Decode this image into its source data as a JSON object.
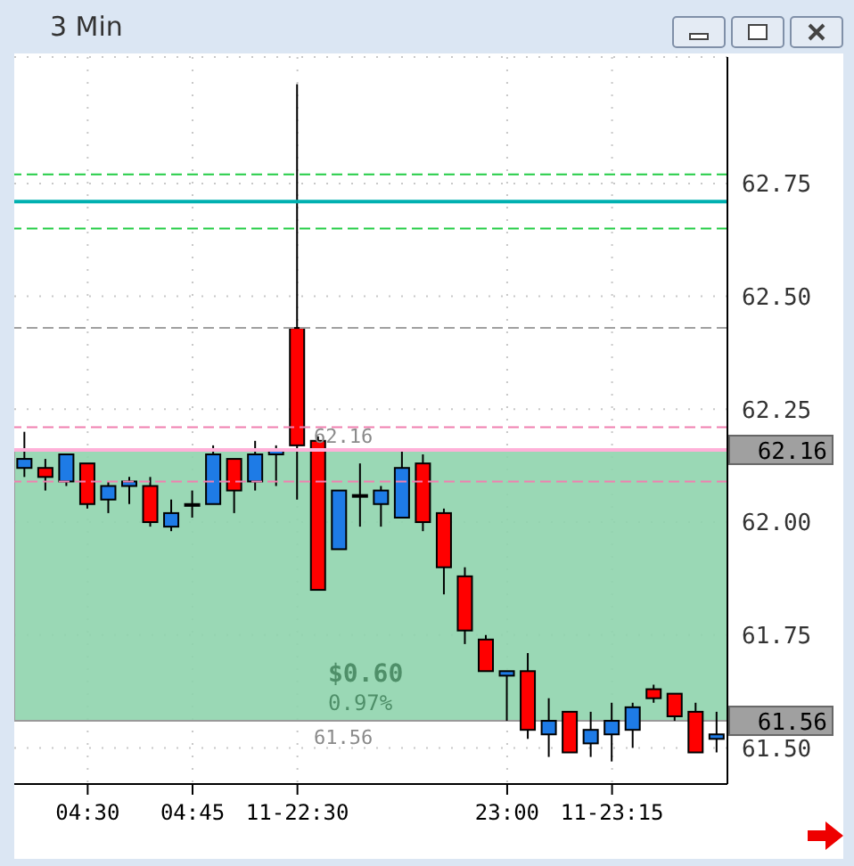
{
  "chart_data": {
    "type": "candlestick",
    "title": "3 Min",
    "categories": [
      null,
      null,
      null,
      "04:30",
      null,
      null,
      null,
      null,
      "04:45",
      null,
      null,
      null,
      null,
      "11-22:30",
      null,
      null,
      null,
      null,
      null,
      null,
      null,
      null,
      null,
      "23:00",
      null,
      null,
      null,
      null,
      "11-23:15",
      null,
      null,
      null,
      null,
      null
    ],
    "ohlc": [
      [
        62.12,
        62.2,
        62.1,
        62.14
      ],
      [
        62.12,
        62.14,
        62.07,
        62.1
      ],
      [
        62.09,
        62.15,
        62.08,
        62.15
      ],
      [
        62.13,
        62.13,
        62.03,
        62.04
      ],
      [
        62.05,
        62.09,
        62.02,
        62.08
      ],
      [
        62.08,
        62.1,
        62.04,
        62.09
      ],
      [
        62.08,
        62.1,
        61.99,
        62.0
      ],
      [
        61.99,
        62.05,
        61.98,
        62.02
      ],
      [
        62.04,
        62.07,
        62.01,
        62.04
      ],
      [
        62.04,
        62.17,
        62.04,
        62.15
      ],
      [
        62.14,
        62.14,
        62.02,
        62.07
      ],
      [
        62.09,
        62.18,
        62.07,
        62.15
      ],
      [
        62.15,
        62.17,
        62.08,
        62.16
      ],
      [
        62.43,
        62.97,
        62.05,
        62.17
      ],
      [
        62.18,
        62.19,
        61.85,
        61.85
      ],
      [
        61.94,
        62.07,
        61.94,
        62.07
      ],
      [
        62.06,
        62.13,
        61.99,
        62.06
      ],
      [
        62.04,
        62.08,
        61.99,
        62.07
      ],
      [
        62.01,
        62.16,
        62.01,
        62.12
      ],
      [
        62.13,
        62.15,
        61.98,
        62.0
      ],
      [
        62.02,
        62.03,
        61.84,
        61.9
      ],
      [
        61.88,
        61.9,
        61.73,
        61.76
      ],
      [
        61.74,
        61.75,
        61.67,
        61.67
      ],
      [
        61.66,
        61.67,
        61.56,
        61.67
      ],
      [
        61.67,
        61.71,
        61.52,
        61.54
      ],
      [
        61.53,
        61.61,
        61.48,
        61.56
      ],
      [
        61.58,
        61.58,
        61.49,
        61.49
      ],
      [
        61.51,
        61.58,
        61.48,
        61.54
      ],
      [
        61.53,
        61.6,
        61.47,
        61.56
      ],
      [
        61.54,
        61.6,
        61.5,
        61.59
      ],
      [
        61.63,
        61.64,
        61.6,
        61.61
      ],
      [
        61.62,
        61.62,
        61.56,
        61.57
      ],
      [
        61.58,
        61.6,
        61.49,
        61.49
      ],
      [
        61.52,
        61.58,
        61.49,
        61.53
      ]
    ],
    "colors": [
      "#1e7be6",
      "#ff0000",
      "#1e7be6",
      "#ff0000",
      "#1e7be6",
      "#1e7be6",
      "#ff0000",
      "#1e7be6",
      "#000000",
      "#1e7be6",
      "#ff0000",
      "#1e7be6",
      "#1e7be6",
      "#ff0000",
      "#ff0000",
      "#1e7be6",
      "#000000",
      "#1e7be6",
      "#1e7be6",
      "#ff0000",
      "#ff0000",
      "#ff0000",
      "#ff0000",
      "#1e7be6",
      "#ff0000",
      "#1e7be6",
      "#ff0000",
      "#1e7be6",
      "#1e7be6",
      "#1e7be6",
      "#ff0000",
      "#ff0000",
      "#ff0000",
      "#1e7be6"
    ],
    "ylim": [
      61.42,
      63.03
    ],
    "yticks": [
      {
        "value": 61.5,
        "label": "61.50"
      },
      61.75,
      {
        "value": 62,
        "label": "62.00"
      },
      62.25,
      {
        "value": 62.5,
        "label": "62.50"
      },
      62.75
    ],
    "grid": true,
    "ref_lines": [
      {
        "axis": "y",
        "value": 62.77,
        "color": "#22cc44",
        "line_style": "dashed"
      },
      {
        "axis": "y",
        "value": 62.71,
        "color": "#00b0b0",
        "line_style": "solid"
      },
      {
        "axis": "y",
        "value": 62.65,
        "color": "#22cc44",
        "line_style": "dashed"
      },
      {
        "axis": "y",
        "value": 62.43,
        "color": "#a0a0a0",
        "line_style": "dashed"
      },
      {
        "axis": "y",
        "value": 62.21,
        "color": "#f080b0",
        "line_style": "dashed"
      },
      {
        "axis": "y",
        "value": 62.16,
        "color": "#ffb0d8",
        "line_style": "solid",
        "label": "62.16"
      },
      {
        "axis": "y",
        "value": 62.09,
        "color": "#f080b0",
        "line_style": "dashed"
      }
    ],
    "bands": [
      {
        "axis": "y",
        "from": 61.56,
        "to": 62.16,
        "label": "$0.60",
        "color": "#8fd4ad"
      }
    ],
    "annotations": [
      "62.16",
      "61.56",
      "0.97%",
      "61.56"
    ]
  }
}
